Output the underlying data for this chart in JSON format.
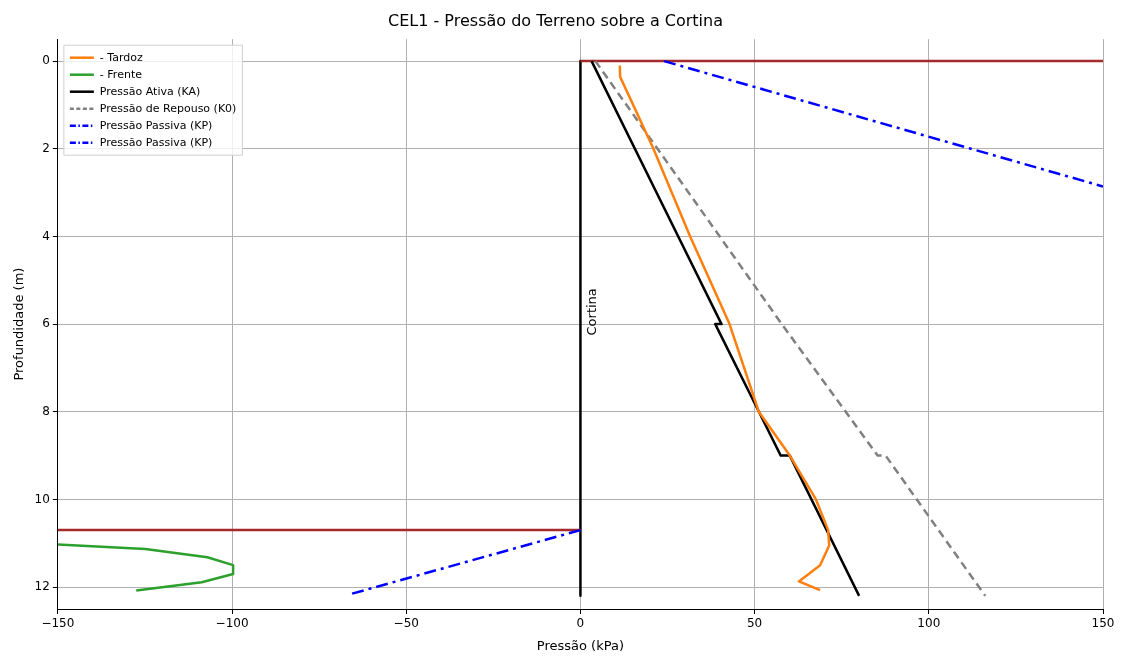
{
  "chart_data": {
    "type": "line",
    "title": "CEL1 - Pressão do Terreno sobre a Cortina",
    "xlabel": "Pressão (kPa)",
    "ylabel": "Profundidade (m)",
    "xlim": [
      -150,
      150
    ],
    "xticks": [
      -150,
      -100,
      -50,
      0,
      50,
      100,
      150
    ],
    "ylim": [
      12.5,
      -0.5
    ],
    "yticks": [
      0,
      2,
      4,
      6,
      8,
      10,
      12
    ],
    "grid": true,
    "legend": "top left",
    "marker": "none",
    "annotations": [
      "Cortina"
    ],
    "series": [
      {
        "name": "- Tardoz",
        "color": "#ff7f0e",
        "line_style": "solid",
        "x": [
          11.3,
          11.4,
          20.8,
          31.5,
          42.8,
          51.2,
          60.1,
          67.6,
          71.1,
          71.4,
          68.8,
          62.7,
          68.8
        ],
        "values": [
          0.1,
          0.36,
          1.97,
          4,
          6,
          8,
          9,
          10,
          10.7,
          11.05,
          11.5,
          11.87,
          12.07
        ]
      },
      {
        "name": "- Frente",
        "color": "#2ca02c",
        "line_style": "solid",
        "x": [
          -150,
          -124.9,
          -107.1,
          -99.7,
          -99.7,
          -108.7,
          -127.5
        ],
        "values": [
          11.03,
          11.13,
          11.32,
          11.5,
          11.7,
          11.89,
          12.08
        ]
      },
      {
        "name": "Pressão Ativa (KA)",
        "color": "#000000",
        "line_style": "solid",
        "x": [
          3.2,
          40.5,
          38.7,
          57.5,
          60.1,
          80
        ],
        "values": [
          0,
          6,
          6,
          9,
          9,
          12.2
        ]
      },
      {
        "name": "Pressão de Repouso (K0)",
        "color": "#808080",
        "line_style": "dashed",
        "x": [
          4.3,
          57.8,
          85.3,
          87.6,
          116.2
        ],
        "values": [
          0,
          6,
          9,
          9,
          12.2
        ]
      },
      {
        "name": "Pressão Passiva (KP)",
        "color": "#0000ff",
        "line_style": "dashdot",
        "x": [
          24,
          150
        ],
        "values": [
          0,
          2.86
        ]
      },
      {
        "name": "Pressão Passiva (KP)",
        "color": "#0000ff",
        "line_style": "dashdot",
        "x": [
          0,
          -66
        ],
        "values": [
          10.7,
          12.16
        ]
      },
      {
        "color": "#a52a2a",
        "line_style": "solid",
        "x": [
          0,
          150
        ],
        "values": [
          0,
          0
        ]
      },
      {
        "color": "#a52a2a",
        "line_style": "solid",
        "x": [
          -150,
          0
        ],
        "values": [
          10.7,
          10.7
        ]
      },
      {
        "color": "#000000",
        "line_style": "solid",
        "x": [
          0,
          0
        ],
        "values": [
          0,
          12.2
        ]
      }
    ]
  }
}
